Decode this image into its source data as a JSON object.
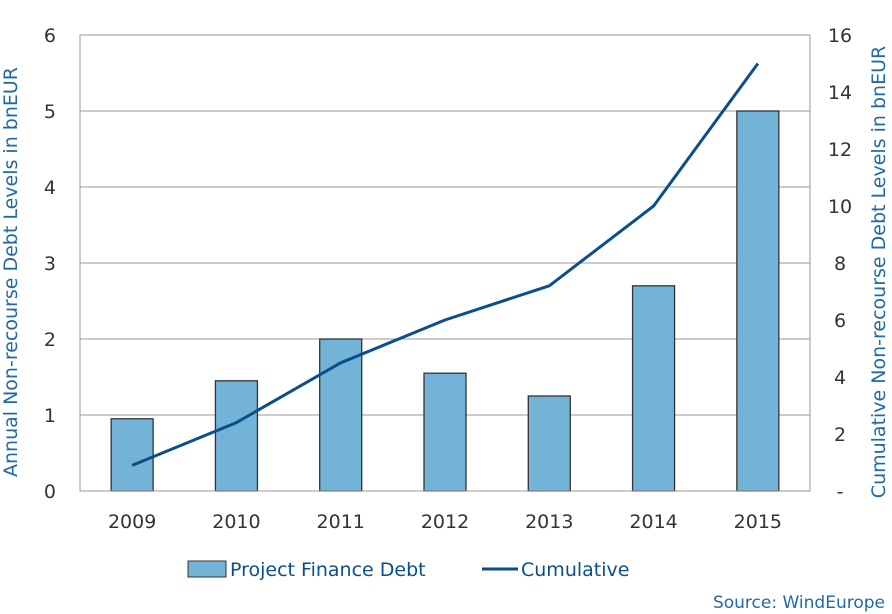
{
  "chart_data": {
    "type": "bar",
    "categories": [
      "2009",
      "2010",
      "2011",
      "2012",
      "2013",
      "2014",
      "2015"
    ],
    "series": [
      {
        "name": "Project Finance Debt",
        "type": "bar",
        "axis": "left",
        "color": "#74b3d8",
        "values": [
          0.95,
          1.45,
          2.0,
          1.55,
          1.25,
          2.7,
          5.0
        ]
      },
      {
        "name": "Cumulative",
        "type": "line",
        "axis": "right",
        "color": "#0b4f8a",
        "values": [
          0.9,
          2.4,
          4.5,
          6.0,
          7.2,
          10.0,
          15.0
        ]
      }
    ],
    "ylabel": "Annual Non-recourse Debt Levels in bnEUR",
    "y2label": "Cumulative Non-recourse Debt Levels in bnEUR",
    "ylim": [
      0,
      6
    ],
    "y2lim": [
      0,
      16
    ],
    "yticks": [
      "0",
      "1",
      "2",
      "3",
      "4",
      "5",
      "6"
    ],
    "y2ticks": [
      "-",
      "2",
      "4",
      "6",
      "8",
      "10",
      "12",
      "14",
      "16"
    ],
    "grid": true,
    "legend": "bottom",
    "source": "Source: WindEurope"
  }
}
